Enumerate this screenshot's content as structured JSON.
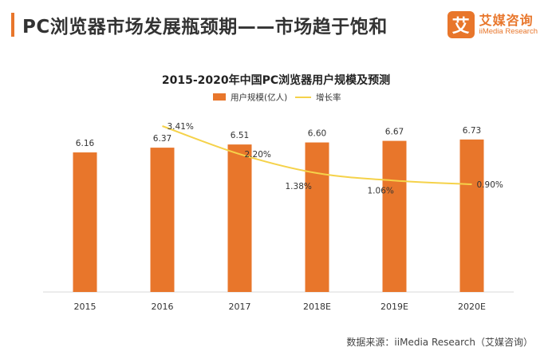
{
  "header": {
    "title": "PC浏览器市场发展瓶颈期——市场趋于饱和"
  },
  "brand": {
    "logo_char": "艾",
    "name_cn": "艾媒咨询",
    "name_en": "iiMedia Research"
  },
  "footer": {
    "source": "数据来源：iiMedia Research（艾媒咨询）"
  },
  "colors": {
    "accent": "#e8762b",
    "line": "#f5d24a"
  },
  "chart_data": {
    "type": "bar",
    "title": "2015-2020年中国PC浏览器用户规模及预测",
    "categories": [
      "2015",
      "2016",
      "2017",
      "2018E",
      "2019E",
      "2020E"
    ],
    "series": [
      {
        "name": "用户规模(亿人)",
        "type": "bar",
        "values": [
          6.16,
          6.37,
          6.51,
          6.6,
          6.67,
          6.73
        ],
        "labels": [
          "6.16",
          "6.37",
          "6.51",
          "6.60",
          "6.67",
          "6.73"
        ]
      },
      {
        "name": "增长率",
        "type": "line",
        "x": [
          "2016",
          "2017",
          "2018E",
          "2019E",
          "2020E"
        ],
        "values": [
          3.41,
          2.2,
          1.38,
          1.06,
          0.9
        ],
        "labels": [
          "3.41%",
          "2.20%",
          "1.38%",
          "1.06%",
          "0.90%"
        ]
      }
    ],
    "legend_position": "top-center",
    "grid": false
  }
}
